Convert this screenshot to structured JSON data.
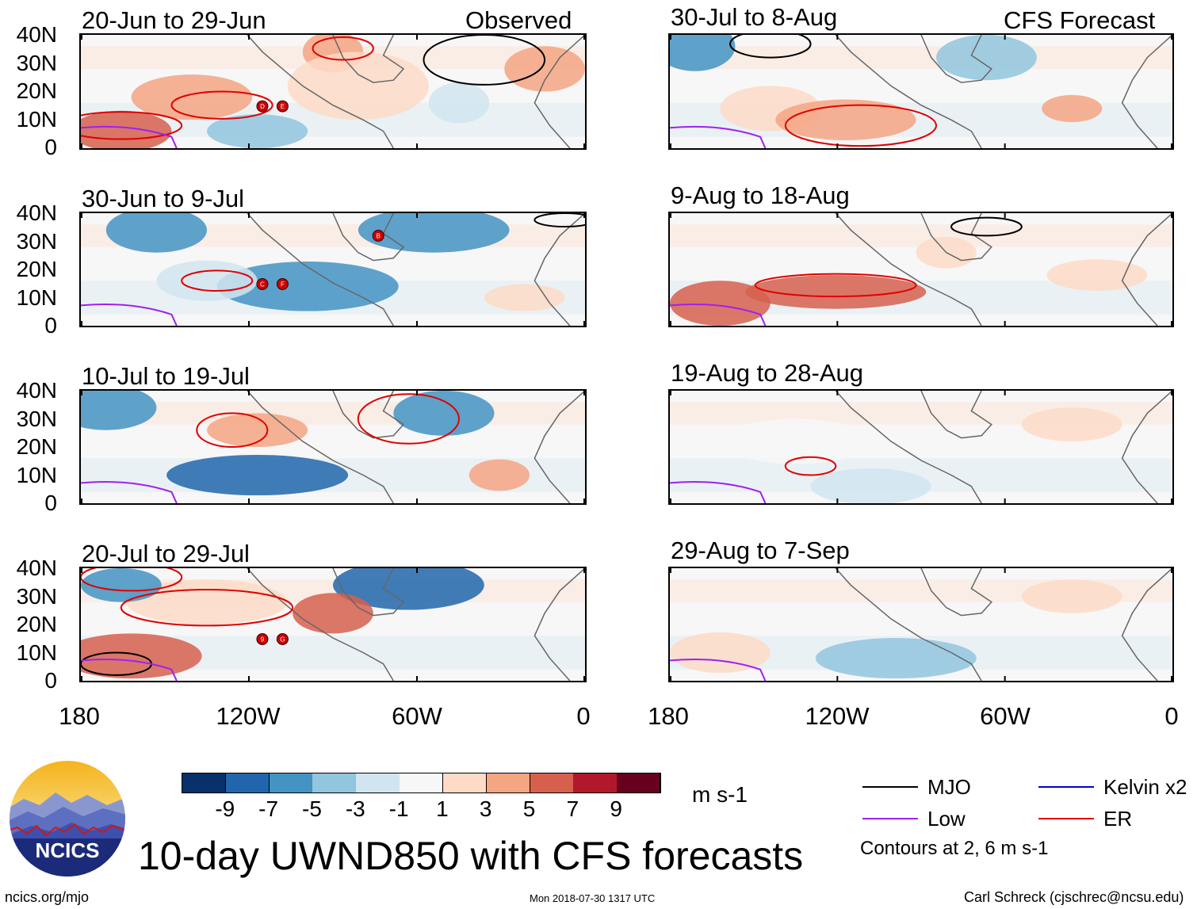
{
  "header": {
    "left_tag": "Observed",
    "right_tag": "CFS Forecast"
  },
  "panels": [
    {
      "title": "20-Jun to 29-Jun",
      "side": "observed",
      "storms": [
        "D",
        "E"
      ]
    },
    {
      "title": "30-Jun to 9-Jul",
      "side": "observed",
      "storms": [
        "C",
        "F",
        "B"
      ]
    },
    {
      "title": "10-Jul to 19-Jul",
      "side": "observed",
      "storms": []
    },
    {
      "title": "20-Jul to 29-Jul",
      "side": "observed",
      "storms": [
        "9",
        "G"
      ]
    },
    {
      "title": "30-Jul to 8-Aug",
      "side": "forecast",
      "storms": []
    },
    {
      "title": "9-Aug to 18-Aug",
      "side": "forecast",
      "storms": []
    },
    {
      "title": "19-Aug to 28-Aug",
      "side": "forecast",
      "storms": []
    },
    {
      "title": "29-Aug to 7-Sep",
      "side": "forecast",
      "storms": []
    }
  ],
  "chart_data": {
    "type": "heatmap",
    "title": "10-day UWND850 with CFS forecasts",
    "variable": "850-hPa zonal wind anomaly",
    "units": "m s-1",
    "y_ticks": [
      "40N",
      "30N",
      "20N",
      "10N",
      "0"
    ],
    "x_ticks": [
      "180",
      "120W",
      "60W",
      "0"
    ],
    "lat_range": [
      0,
      40
    ],
    "lon_range": [
      -180,
      0
    ],
    "colorbar": {
      "levels": [
        "-9",
        "-7",
        "-5",
        "-3",
        "-1",
        "1",
        "3",
        "5",
        "7",
        "9"
      ],
      "colors": [
        "#08306b",
        "#2166ac",
        "#4393c3",
        "#92c5de",
        "#d1e5f0",
        "#f7f7f7",
        "#fddbc7",
        "#f4a582",
        "#d6604d",
        "#b2182b",
        "#67001f"
      ]
    },
    "contour_note": "Contours at 2, 6 m s-1",
    "legend": [
      {
        "label": "MJO",
        "color": "#000000"
      },
      {
        "label": "Kelvin x2",
        "color": "#0000cc"
      },
      {
        "label": "Low",
        "color": "#a020f0"
      },
      {
        "label": "ER",
        "color": "#e00000"
      }
    ]
  },
  "footer": {
    "logo_text": "NCICS",
    "site": "ncics.org/mjo",
    "timestamp": "Mon 2018-07-30 1317 UTC",
    "author": "Carl Schreck (cjschrec@ncsu.edu)"
  }
}
